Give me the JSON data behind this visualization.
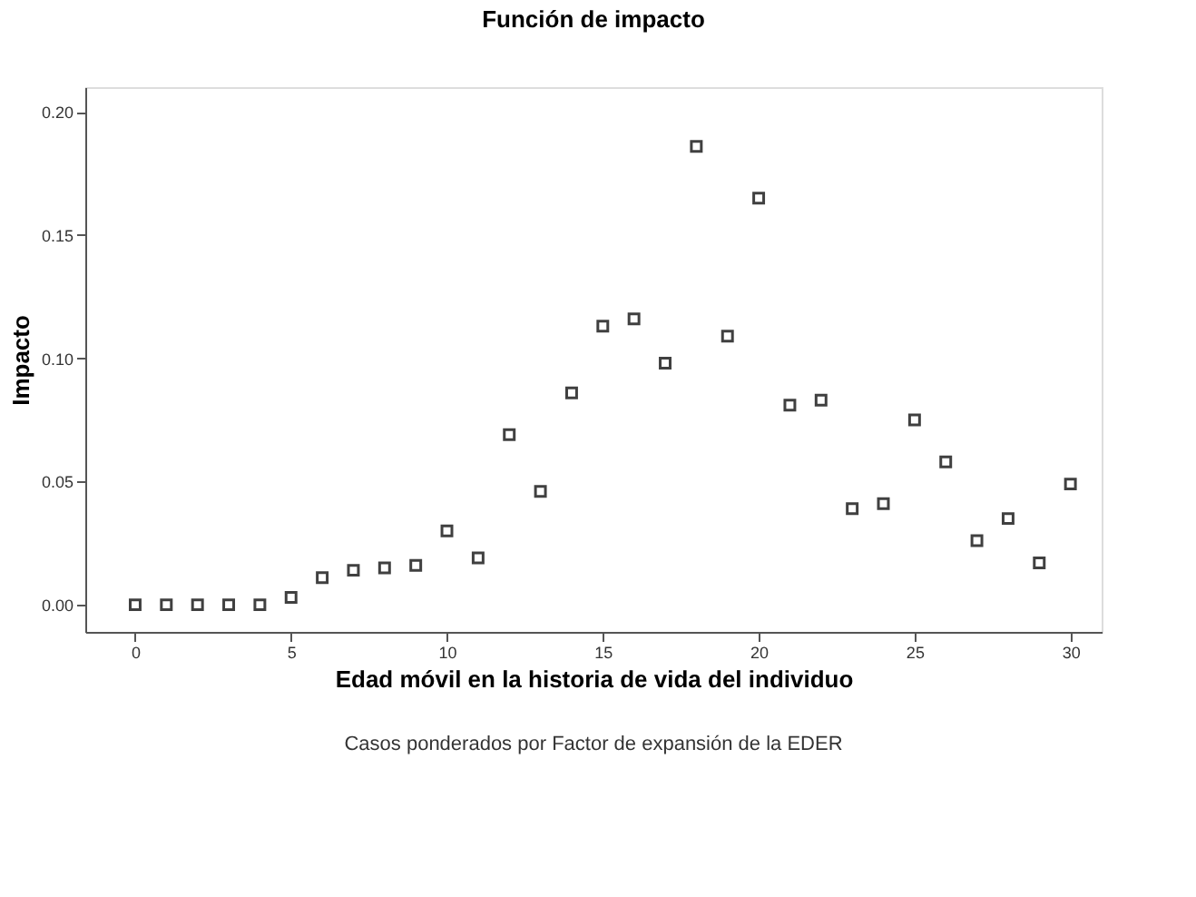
{
  "chart_data": {
    "type": "scatter",
    "title": "Función de impacto",
    "xlabel": "Edad móvil en la historia de vida del individuo",
    "ylabel": "Impacto",
    "annotations": [
      "Casos ponderados por Factor de expansión de la EDER"
    ],
    "x": [
      0,
      1,
      2,
      3,
      4,
      5,
      6,
      7,
      8,
      9,
      10,
      11,
      12,
      13,
      14,
      15,
      16,
      17,
      18,
      19,
      20,
      21,
      22,
      23,
      24,
      25,
      26,
      27,
      28,
      29,
      30
    ],
    "series": [
      {
        "color": "#404040",
        "values": [
          0,
          0,
          0,
          0,
          0,
          0.003,
          0.011,
          0.014,
          0.015,
          0.016,
          0.03,
          0.019,
          0.069,
          0.046,
          0.086,
          0.113,
          0.116,
          0.098,
          0.186,
          0.109,
          0.165,
          0.081,
          0.083,
          0.039,
          0.041,
          0.075,
          0.058,
          0.026,
          0.035,
          0.017,
          0.049
        ]
      }
    ],
    "xlim": [
      -1.6,
      31
    ],
    "xticks": [
      0,
      5,
      10,
      15,
      20,
      25,
      30
    ],
    "ylim": [
      -0.011,
      0.21
    ],
    "yticks": [
      {
        "value": 0,
        "label": "0.00"
      },
      {
        "value": 0.05,
        "label": "0.05"
      },
      {
        "value": 0.1,
        "label": "0.10"
      },
      {
        "value": 0.15,
        "label": "0.15"
      },
      {
        "value": 0.2,
        "label": "0.20"
      }
    ],
    "grid": false,
    "legend": false,
    "marker": "square"
  }
}
